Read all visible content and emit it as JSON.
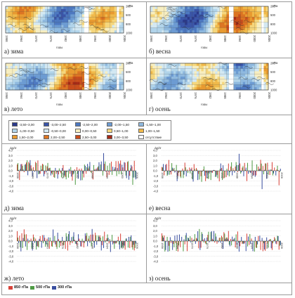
{
  "heat_panels": [
    {
      "caption": "а) зима",
      "seed": 3
    },
    {
      "caption": "б) весна",
      "seed": 7
    },
    {
      "caption": "в) лето",
      "seed": 11
    },
    {
      "caption": "г) осень",
      "seed": 19
    }
  ],
  "heat_axis": {
    "unit": "гПа",
    "y_ticks": [
      "200",
      "500",
      "800",
      "1000"
    ],
    "x_ticks": [
      "1958",
      "1964",
      "1970",
      "1976",
      "1982",
      "1988",
      "1994",
      "2000",
      "2006"
    ],
    "x_title": "годы"
  },
  "legend": {
    "items": [
      {
        "label": "-3,50–3,00",
        "color": "#2b3a8c"
      },
      {
        "label": "-3,00–2,50",
        "color": "#3a55a8"
      },
      {
        "label": "-2,50–2,00",
        "color": "#4d78c0"
      },
      {
        "label": "-2,00–1,50",
        "color": "#6c9bd2"
      },
      {
        "label": "-1,50–1,00",
        "color": "#8fb9df"
      },
      {
        "label": "-1,00–0,50",
        "color": "#b1d4ea"
      },
      {
        "label": "-0,50–0,00",
        "color": "#d3e8f2"
      },
      {
        "label": "0,00–0,50",
        "color": "#f7eec0"
      },
      {
        "label": "0,50–1,00",
        "color": "#f5d67b"
      },
      {
        "label": "1,00–1,50",
        "color": "#f0b94a"
      },
      {
        "label": "1,50–2,00",
        "color": "#e89a30"
      },
      {
        "label": "2,00–2,50",
        "color": "#dc7422"
      },
      {
        "label": "2,50–3,00",
        "color": "#c94d1c"
      },
      {
        "label": "3,00–3,50",
        "color": "#a62a16"
      },
      {
        "label": "отсутствие",
        "color": "#ffffff"
      }
    ]
  },
  "bar_panels": [
    {
      "caption": "д) зима",
      "seed": 5
    },
    {
      "caption": "е) весна",
      "seed": 13
    },
    {
      "caption": "ж) лето",
      "seed": 23
    },
    {
      "caption": "з) осень",
      "seed": 29
    }
  ],
  "bar_axis": {
    "ylabel": "Δg/σ",
    "y_ticks": [
      "4,0",
      "3,0",
      "2,0",
      "1,0",
      "0,0",
      "-1,0",
      "-2,0",
      "-3,0",
      "-4,0"
    ],
    "x_ticks": [
      "1958",
      "1964",
      "1970",
      "1976",
      "1982",
      "1988",
      "1994",
      "2000",
      "2006"
    ]
  },
  "series": [
    {
      "name": "850 гПа",
      "color": "#d8433a"
    },
    {
      "name": "500 гПа",
      "color": "#4f9b45"
    },
    {
      "name": "300 гПа",
      "color": "#3a4fa0"
    }
  ],
  "chart_data": [
    {
      "type": "heatmap",
      "title": "а) зима",
      "x_range": [
        1958,
        2009
      ],
      "y_range": [
        1000,
        200
      ],
      "ylabel": "гПа",
      "xlabel": "годы"
    },
    {
      "type": "heatmap",
      "title": "б) весна",
      "x_range": [
        1958,
        2009
      ],
      "y_range": [
        1000,
        200
      ],
      "ylabel": "гПа",
      "xlabel": "годы"
    },
    {
      "type": "heatmap",
      "title": "в) лето",
      "x_range": [
        1958,
        2009
      ],
      "y_range": [
        1000,
        200
      ],
      "ylabel": "гПа",
      "xlabel": "годы"
    },
    {
      "type": "heatmap",
      "title": "г) осень",
      "x_range": [
        1958,
        2009
      ],
      "y_range": [
        1000,
        200
      ],
      "ylabel": "гПа",
      "xlabel": "годы"
    },
    {
      "type": "bar",
      "title": "д) зима",
      "ylabel": "Δg/σ",
      "ylim": [
        -4,
        4
      ],
      "x_range": [
        1958,
        2009
      ],
      "series": [
        "850 гПа",
        "500 гПа",
        "300 гПа"
      ]
    },
    {
      "type": "bar",
      "title": "е) весна",
      "ylabel": "Δg/σ",
      "ylim": [
        -4,
        4
      ],
      "x_range": [
        1958,
        2009
      ],
      "series": [
        "850 гПа",
        "500 гПа",
        "300 гПа"
      ]
    },
    {
      "type": "bar",
      "title": "ж) лето",
      "ylabel": "Δg/σ",
      "ylim": [
        -4,
        4
      ],
      "x_range": [
        1958,
        2009
      ],
      "series": [
        "850 гПа",
        "500 гПа",
        "300 гПа"
      ]
    },
    {
      "type": "bar",
      "title": "з) осень",
      "ylabel": "Δg/σ",
      "ylim": [
        -4,
        4
      ],
      "x_range": [
        1958,
        2009
      ],
      "series": [
        "850 гПа",
        "500 гПа",
        "300 гПа"
      ]
    }
  ]
}
